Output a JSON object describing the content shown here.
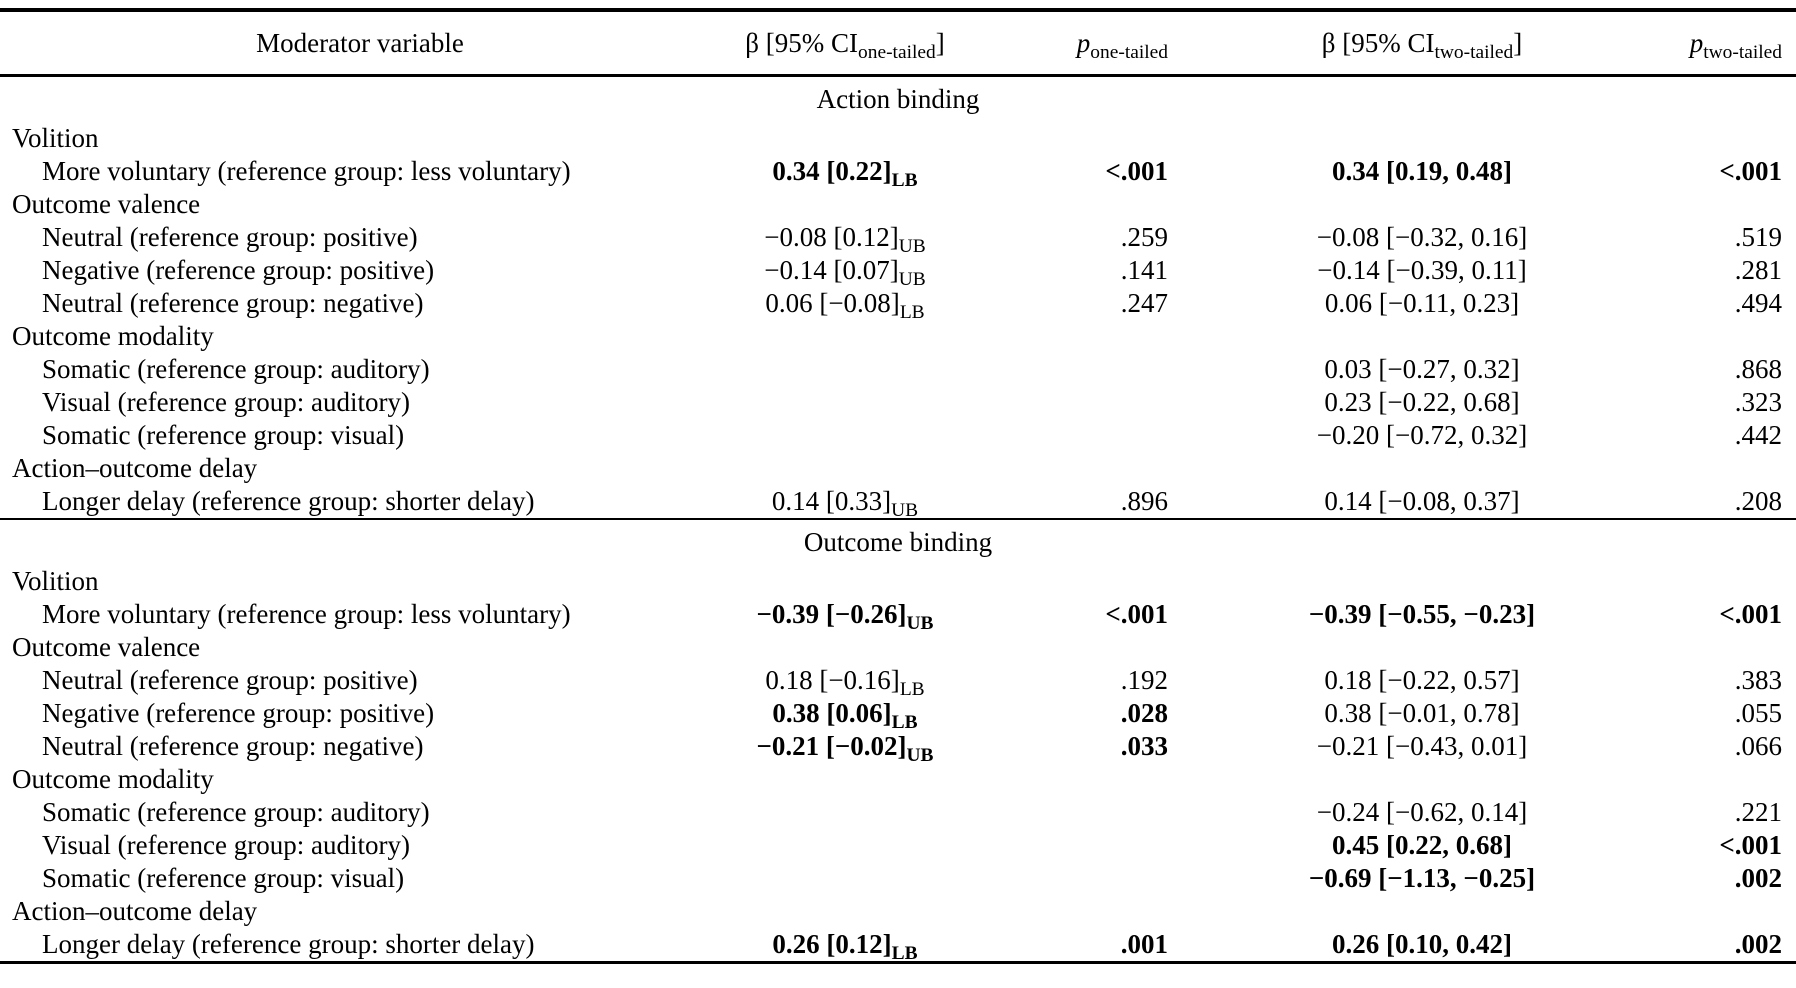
{
  "table": {
    "header": {
      "moderator": "Moderator variable",
      "beta_ci_prefix": "β [95% CI",
      "bracket_close": "]",
      "p": "p",
      "one_tailed": "one-tailed",
      "two_tailed": "two-tailed"
    },
    "sections": [
      {
        "title": "Action binding",
        "rows": [
          {
            "group": true,
            "label": "Volition"
          },
          {
            "group": false,
            "label": "More voluntary (reference group: less voluntary)",
            "beta_one": "0.34 [0.22]",
            "beta_one_sub": "LB",
            "p_one": "<.001",
            "bold_one": true,
            "beta_two": "0.34 [0.19, 0.48]",
            "p_two": "<.001",
            "bold_two": true
          },
          {
            "group": true,
            "label": "Outcome valence"
          },
          {
            "group": false,
            "label": "Neutral (reference group: positive)",
            "beta_one": "−0.08 [0.12]",
            "beta_one_sub": "UB",
            "p_one": ".259",
            "beta_two": "−0.08 [−0.32, 0.16]",
            "p_two": ".519"
          },
          {
            "group": false,
            "label": "Negative (reference group: positive)",
            "beta_one": "−0.14 [0.07]",
            "beta_one_sub": "UB",
            "p_one": ".141",
            "beta_two": "−0.14 [−0.39, 0.11]",
            "p_two": ".281"
          },
          {
            "group": false,
            "label": "Neutral (reference group: negative)",
            "beta_one": "0.06 [−0.08]",
            "beta_one_sub": "LB",
            "p_one": ".247",
            "beta_two": "0.06 [−0.11, 0.23]",
            "p_two": ".494"
          },
          {
            "group": true,
            "label": "Outcome modality"
          },
          {
            "group": false,
            "label": "Somatic (reference group: auditory)",
            "beta_two": "0.03 [−0.27, 0.32]",
            "p_two": ".868"
          },
          {
            "group": false,
            "label": "Visual (reference group: auditory)",
            "beta_two": "0.23 [−0.22, 0.68]",
            "p_two": ".323"
          },
          {
            "group": false,
            "label": "Somatic (reference group: visual)",
            "beta_two": "−0.20 [−0.72, 0.32]",
            "p_two": ".442"
          },
          {
            "group": true,
            "label": "Action–outcome delay"
          },
          {
            "group": false,
            "label": "Longer delay (reference group: shorter delay)",
            "beta_one": "0.14 [0.33]",
            "beta_one_sub": "UB",
            "p_one": ".896",
            "beta_two": "0.14 [−0.08, 0.37]",
            "p_two": ".208"
          }
        ]
      },
      {
        "title": "Outcome binding",
        "rows": [
          {
            "group": true,
            "label": "Volition"
          },
          {
            "group": false,
            "label": "More voluntary (reference group: less voluntary)",
            "beta_one": "−0.39 [−0.26]",
            "beta_one_sub": "UB",
            "p_one": "<.001",
            "bold_one": true,
            "beta_two": "−0.39 [−0.55, −0.23]",
            "p_two": "<.001",
            "bold_two": true
          },
          {
            "group": true,
            "label": "Outcome valence"
          },
          {
            "group": false,
            "label": "Neutral (reference group: positive)",
            "beta_one": "0.18 [−0.16]",
            "beta_one_sub": "LB",
            "p_one": ".192",
            "beta_two": "0.18 [−0.22, 0.57]",
            "p_two": ".383"
          },
          {
            "group": false,
            "label": "Negative (reference group: positive)",
            "beta_one": "0.38 [0.06]",
            "beta_one_sub": "LB",
            "p_one": ".028",
            "bold_one": true,
            "beta_two": "0.38 [−0.01, 0.78]",
            "p_two": ".055"
          },
          {
            "group": false,
            "label": "Neutral (reference group: negative)",
            "beta_one": "−0.21 [−0.02]",
            "beta_one_sub": "UB",
            "p_one": ".033",
            "bold_one": true,
            "beta_two": "−0.21 [−0.43, 0.01]",
            "p_two": ".066"
          },
          {
            "group": true,
            "label": "Outcome modality"
          },
          {
            "group": false,
            "label": "Somatic (reference group: auditory)",
            "beta_two": "−0.24 [−0.62, 0.14]",
            "p_two": ".221"
          },
          {
            "group": false,
            "label": "Visual (reference group: auditory)",
            "beta_two": "0.45 [0.22, 0.68]",
            "p_two": "<.001",
            "bold_two": true
          },
          {
            "group": false,
            "label": "Somatic (reference group: visual)",
            "beta_two": "−0.69 [−1.13, −0.25]",
            "p_two": ".002",
            "bold_two": true
          },
          {
            "group": true,
            "label": "Action–outcome delay"
          },
          {
            "group": false,
            "label": "Longer delay (reference group: shorter delay)",
            "beta_one": "0.26 [0.12]",
            "beta_one_sub": "LB",
            "p_one": ".001",
            "bold_one": true,
            "beta_two": "0.26 [0.10, 0.42]",
            "p_two": ".002",
            "bold_two": true
          }
        ]
      }
    ]
  }
}
